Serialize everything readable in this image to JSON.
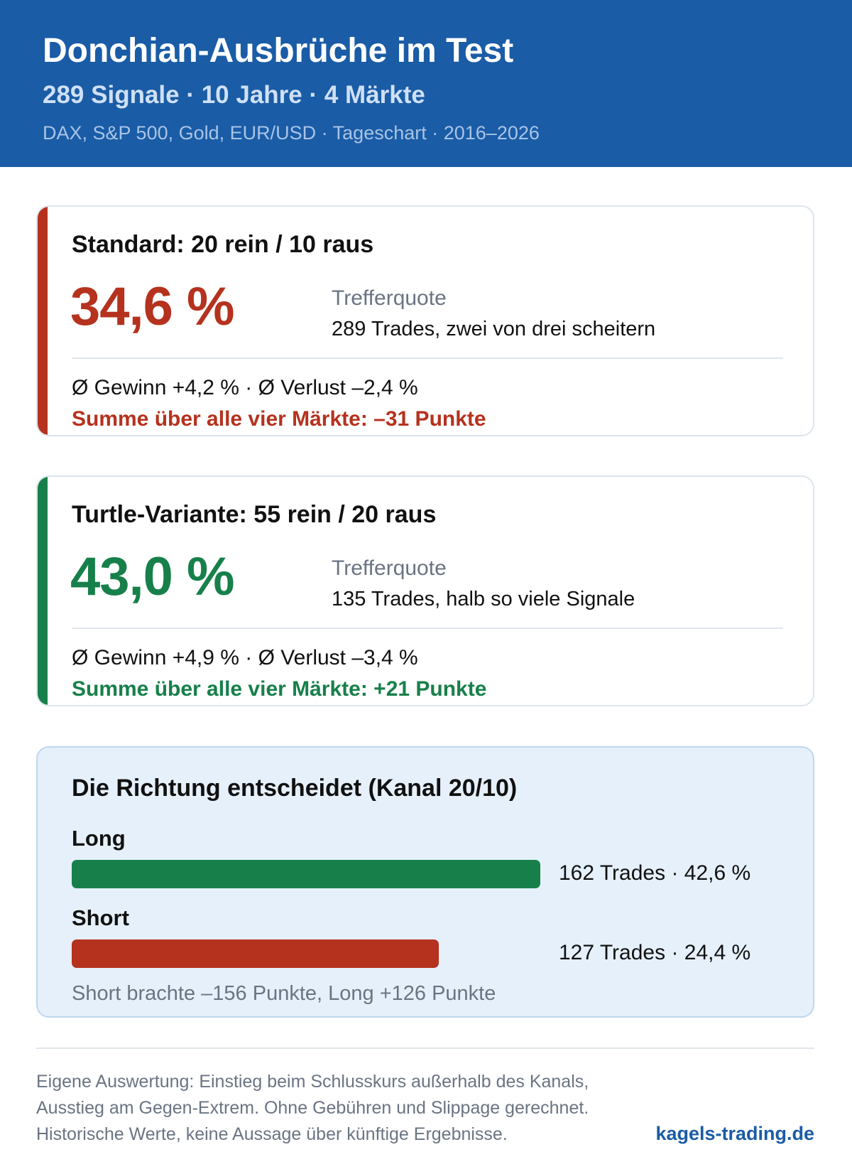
{
  "header": {
    "title": "Donchian-Ausbrüche im Test",
    "subtitle": "289 Signale · 10 Jahre · 4 Märkte",
    "meta": "DAX, S&P 500, Gold, EUR/USD · Tageschart · 2016–2026"
  },
  "colors": {
    "header_bg": "#1a5ca6",
    "negative": "#b5321e",
    "positive": "#17804a",
    "direction_bg": "#e5f0fb"
  },
  "cards": [
    {
      "title": "Standard: 20 rein / 10 raus",
      "value": "34,6 %",
      "metric_label": "Trefferquote",
      "metric_desc": "289 Trades, zwei von drei scheitern",
      "stats": "Ø Gewinn +4,2 % · Ø Verlust –2,4 %",
      "sum": "Summe über alle vier Märkte: –31 Punkte"
    },
    {
      "title": "Turtle-Variante: 55 rein / 20 raus",
      "value": "43,0 %",
      "metric_label": "Trefferquote",
      "metric_desc": "135 Trades, halb so viele Signale",
      "stats": "Ø Gewinn +4,9 % · Ø Verlust –3,4 %",
      "sum": "Summe über alle vier Märkte: +21 Punkte"
    }
  ],
  "chart_data": {
    "type": "bar",
    "title": "Die Richtung entscheidet (Kanal 20/10)",
    "categories": [
      "Long",
      "Short"
    ],
    "trades": [
      162,
      127
    ],
    "hit_rate_percent": [
      42.6,
      24.4
    ],
    "bar_labels": [
      "162 Trades · 42,6 %",
      "127 Trades · 24,4 %"
    ],
    "bar_colors": [
      "#17804a",
      "#b5321e"
    ],
    "note": "Short brachte –156 Punkte, Long +126 Punkte"
  },
  "footer": {
    "lines": [
      "Eigene Auswertung: Einstieg beim Schlusskurs außerhalb des Kanals,",
      "Ausstieg am Gegen-Extrem. Ohne Gebühren und Slippage gerechnet.",
      "Historische Werte, keine Aussage über künftige Ergebnisse."
    ],
    "brand": "kagels-trading.de"
  }
}
